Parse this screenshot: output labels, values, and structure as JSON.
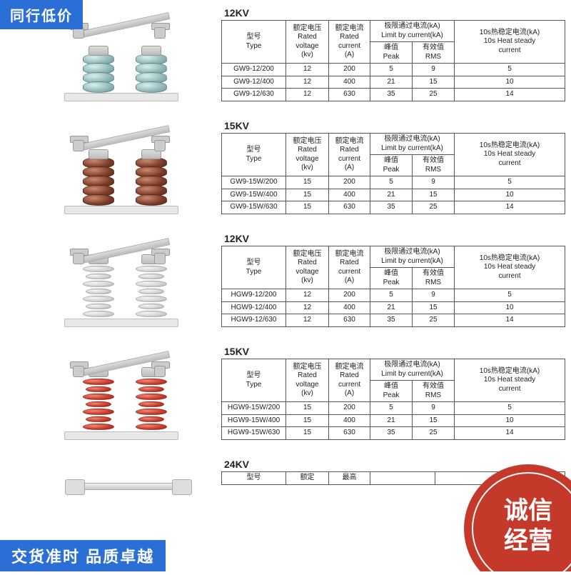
{
  "badges": {
    "top_left": "同行低价",
    "bottom_left": "交货准时  品质卓越",
    "bottom_right_line1": "诚信",
    "bottom_right_line2": "经营"
  },
  "colors": {
    "top_badge_bg": "#2b6fd6",
    "bottom_left_bg": "#2b6fd6",
    "accent_red": "#c5392a",
    "table_border": "#555555",
    "text": "#222222"
  },
  "headers": {
    "type": "型号\nType",
    "voltage": "额定电压\nRated voltage\n(kv)",
    "current": "额定电流\nRated current\n(A)",
    "limit": "极限通过电流(kA)\nLimit by current(kA)",
    "peak": "峰值\nPeak",
    "rms": "有效值\nRMS",
    "heat": "10s热稳定电流(kA)\n10s Heat steady current",
    "max": "最高"
  },
  "sections": [
    {
      "title": "12KV",
      "product_style": "porcelain_teal",
      "rows": [
        {
          "type": "GW9-12/200",
          "v": "12",
          "a": "200",
          "peak": "5",
          "rms": "9",
          "heat": "5"
        },
        {
          "type": "GW9-12/400",
          "v": "12",
          "a": "400",
          "peak": "21",
          "rms": "15",
          "heat": "10"
        },
        {
          "type": "GW9-12/630",
          "v": "12",
          "a": "630",
          "peak": "35",
          "rms": "25",
          "heat": "14"
        }
      ]
    },
    {
      "title": "15KV",
      "product_style": "porcelain_brown",
      "rows": [
        {
          "type": "GW9-15W/200",
          "v": "15",
          "a": "200",
          "peak": "5",
          "rms": "9",
          "heat": "5"
        },
        {
          "type": "GW9-15W/400",
          "v": "15",
          "a": "400",
          "peak": "21",
          "rms": "15",
          "heat": "10"
        },
        {
          "type": "GW9-15W/630",
          "v": "15",
          "a": "630",
          "peak": "35",
          "rms": "25",
          "heat": "14"
        }
      ]
    },
    {
      "title": "12KV",
      "product_style": "polymer_grey",
      "rows": [
        {
          "type": "HGW9-12/200",
          "v": "12",
          "a": "200",
          "peak": "5",
          "rms": "9",
          "heat": "5"
        },
        {
          "type": "HGW9-12/400",
          "v": "12",
          "a": "400",
          "peak": "21",
          "rms": "15",
          "heat": "10"
        },
        {
          "type": "HGW9-12/630",
          "v": "12",
          "a": "630",
          "peak": "35",
          "rms": "25",
          "heat": "14"
        }
      ]
    },
    {
      "title": "15KV",
      "product_style": "polymer_red",
      "rows": [
        {
          "type": "HGW9-15W/200",
          "v": "15",
          "a": "200",
          "peak": "5",
          "rms": "9",
          "heat": "5"
        },
        {
          "type": "HGW9-15W/400",
          "v": "15",
          "a": "400",
          "peak": "21",
          "rms": "15",
          "heat": "10"
        },
        {
          "type": "HGW9-15W/630",
          "v": "15",
          "a": "630",
          "peak": "35",
          "rms": "25",
          "heat": "14"
        }
      ]
    }
  ],
  "section5": {
    "title": "24KV",
    "partial_headers": [
      "型号",
      "额定",
      "最高"
    ]
  }
}
